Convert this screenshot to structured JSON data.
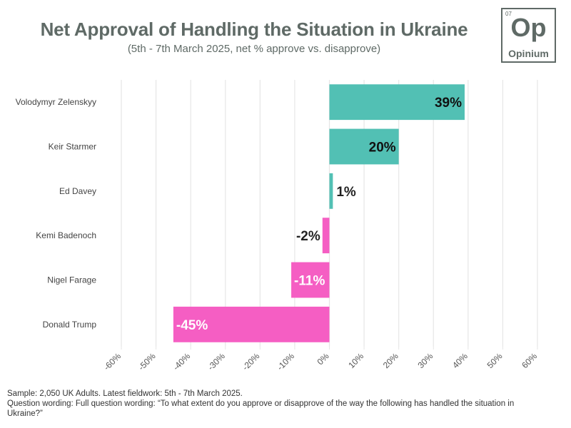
{
  "chart_data": {
    "type": "bar",
    "orientation": "horizontal",
    "title": "Net Approval of Handling the Situation in Ukraine",
    "subtitle": "(5th - 7th March 2025, net % approve vs. disapprove)",
    "categories": [
      "Volodymyr Zelenskyy",
      "Keir Starmer",
      "Ed Davey",
      "Kemi Badenoch",
      "Nigel Farage",
      "Donald Trump"
    ],
    "values": [
      39,
      20,
      1,
      -2,
      -11,
      -45
    ],
    "data_labels": [
      "39%",
      "20%",
      "1%",
      "-2%",
      "-11%",
      "-45%"
    ],
    "xlim": [
      -60,
      60
    ],
    "xticks": [
      -60,
      -50,
      -40,
      -30,
      -20,
      -10,
      0,
      10,
      20,
      30,
      40,
      50,
      60
    ],
    "xtick_labels": [
      "-60%",
      "-50%",
      "-40%",
      "-30%",
      "-20%",
      "-10%",
      "0%",
      "10%",
      "20%",
      "30%",
      "40%",
      "50%",
      "60%"
    ],
    "xlabel": "",
    "ylabel": "",
    "grid": true,
    "colors": {
      "positive": "#52c0b4",
      "negative": "#f55ec3",
      "grid": "#e6e6e6",
      "axis_text": "#555555"
    }
  },
  "logo": {
    "number": "07",
    "symbol": "Op",
    "name": "Opinium"
  },
  "footer": {
    "sample": "Sample: 2,050 UK Adults. Latest fieldwork: 5th - 7th March 2025.",
    "question": "Question wording: Full question wording: “To what extent do you approve or disapprove of the way the following has handled the situation in Ukraine?”"
  }
}
